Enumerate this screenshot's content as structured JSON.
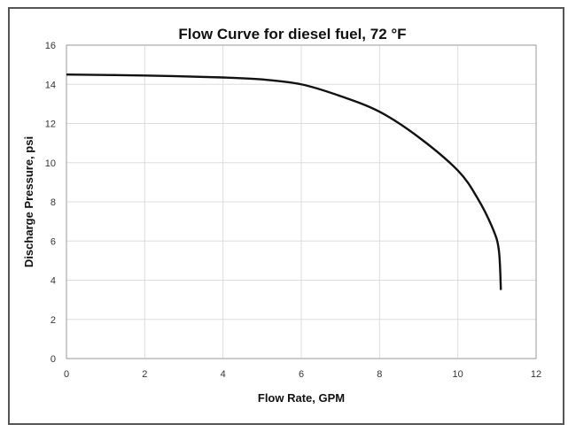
{
  "chart_data": {
    "type": "line",
    "title": "Flow Curve for diesel fuel, 72 °F",
    "xlabel": "Flow Rate, GPM",
    "ylabel": "Discharge Pressure, psi",
    "xlim": [
      0,
      12
    ],
    "ylim": [
      0,
      16
    ],
    "xticks": [
      0,
      2,
      4,
      6,
      8,
      10,
      12
    ],
    "yticks": [
      0,
      2,
      4,
      6,
      8,
      10,
      12,
      14,
      16
    ],
    "grid": true,
    "legend": "none",
    "series": [
      {
        "color": "#111111",
        "points": [
          [
            0,
            14.5
          ],
          [
            2,
            14.45
          ],
          [
            4,
            14.35
          ],
          [
            5,
            14.25
          ],
          [
            6,
            14.0
          ],
          [
            7,
            13.4
          ],
          [
            8,
            12.6
          ],
          [
            9,
            11.3
          ],
          [
            10,
            9.6
          ],
          [
            10.5,
            8.2
          ],
          [
            10.9,
            6.6
          ],
          [
            11.05,
            5.5
          ],
          [
            11.1,
            3.5
          ]
        ]
      }
    ]
  }
}
